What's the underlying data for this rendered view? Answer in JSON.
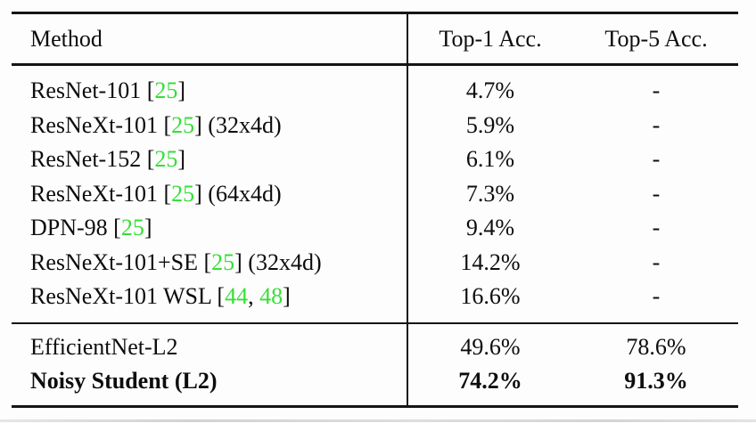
{
  "colors": {
    "citation_green": "#35df35",
    "rule_black": "#151515",
    "text_black": "#0d0d0d",
    "background": "#fdfdfd"
  },
  "table": {
    "header": {
      "method": "Method",
      "top1": "Top-1 Acc.",
      "top5": "Top-5 Acc."
    },
    "rows": [
      {
        "pre": "ResNet-101 [",
        "cite1": "25",
        "sep": "",
        "cite2": "",
        "post": "]",
        "top1": "4.7%",
        "top5": "-"
      },
      {
        "pre": "ResNeXt-101 [",
        "cite1": "25",
        "sep": "",
        "cite2": "",
        "post": "] (32x4d)",
        "top1": "5.9%",
        "top5": "-"
      },
      {
        "pre": "ResNet-152 [",
        "cite1": "25",
        "sep": "",
        "cite2": "",
        "post": "]",
        "top1": "6.1%",
        "top5": "-"
      },
      {
        "pre": "ResNeXt-101 [",
        "cite1": "25",
        "sep": "",
        "cite2": "",
        "post": "] (64x4d)",
        "top1": "7.3%",
        "top5": "-"
      },
      {
        "pre": "DPN-98 [",
        "cite1": "25",
        "sep": "",
        "cite2": "",
        "post": "]",
        "top1": "9.4%",
        "top5": "-"
      },
      {
        "pre": "ResNeXt-101+SE [",
        "cite1": "25",
        "sep": "",
        "cite2": "",
        "post": "] (32x4d)",
        "top1": "14.2%",
        "top5": "-"
      },
      {
        "pre": "ResNeXt-101 WSL [",
        "cite1": "44",
        "sep": ", ",
        "cite2": "48",
        "post": "]",
        "top1": "16.6%",
        "top5": "-"
      }
    ],
    "lower_rows": [
      {
        "method": "EfficientNet-L2",
        "top1": "49.6%",
        "top5": "78.6%"
      },
      {
        "method": "Noisy Student (L2)",
        "top1": "74.2%",
        "top5": "91.3%"
      }
    ]
  }
}
